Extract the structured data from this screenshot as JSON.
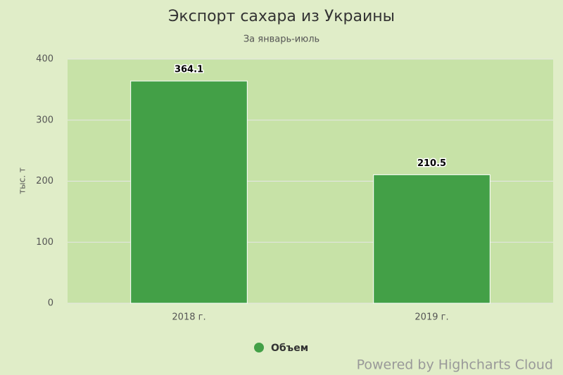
{
  "chart_data": {
    "type": "bar",
    "title": "Экспорт сахара из Украины",
    "subtitle": "За январь-июль",
    "y_label": "тыс. т",
    "categories": [
      "2018 г.",
      "2019 г."
    ],
    "series": [
      {
        "name": "Объем",
        "color": "#43a047",
        "values": [
          364.1,
          210.5
        ]
      }
    ],
    "ylim": [
      0,
      400
    ],
    "yticks": [
      0,
      100,
      200,
      300,
      400
    ],
    "grid": true,
    "legend": "bottom",
    "credits": "Powered by Highcharts Cloud"
  }
}
